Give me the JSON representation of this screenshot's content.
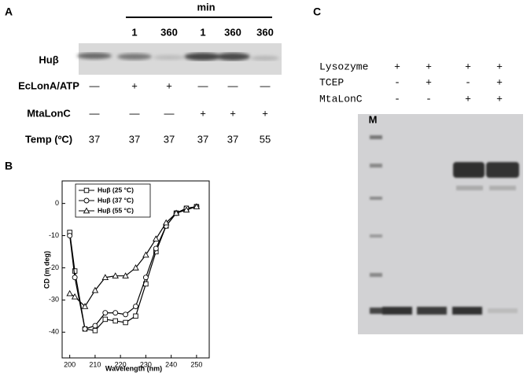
{
  "panel_a": {
    "label": "A",
    "time_unit": "min",
    "time_points": [
      1,
      360,
      1,
      360,
      360
    ],
    "blot_label": "Huβ",
    "rows": [
      {
        "label": "EcLonA/ATP",
        "cells": [
          "—",
          "+",
          "+",
          "—",
          "—",
          "—"
        ]
      },
      {
        "label": "MtaLonC",
        "cells": [
          "—",
          "—",
          "—",
          "+",
          "+",
          "+"
        ]
      },
      {
        "label": "Temp (ºC)",
        "cells": [
          37,
          37,
          37,
          37,
          37,
          55
        ]
      }
    ]
  },
  "chart_data": {
    "type": "line",
    "label": "B",
    "x_label": "Wavelength (nm)",
    "y_label": "CD (m deg)",
    "x": [
      200,
      202,
      206,
      210,
      214,
      218,
      222,
      226,
      230,
      234,
      238,
      242,
      246,
      250
    ],
    "series": [
      {
        "name": "Huβ (25 °C)",
        "marker": "square",
        "color": "#000000",
        "values": [
          -9,
          -21,
          -39,
          -39.5,
          -36,
          -36.5,
          -37,
          -35,
          -25,
          -15,
          -7,
          -3,
          -1.5,
          -1
        ]
      },
      {
        "name": "Huβ (37 °C)",
        "marker": "circle",
        "color": "#000000",
        "values": [
          -10,
          -23,
          -39,
          -38,
          -34,
          -34,
          -34.5,
          -32,
          -23,
          -14,
          -7,
          -3,
          -1.5,
          -1
        ]
      },
      {
        "name": "Huβ (55 °C)",
        "marker": "triangle",
        "color": "#000000",
        "values": [
          -28,
          -29,
          -32,
          -27,
          -23,
          -22.5,
          -22.5,
          -20,
          -16,
          -11,
          -6,
          -3,
          -2,
          -1
        ]
      }
    ],
    "xlim": [
      197,
      255
    ],
    "ylim": [
      -48,
      7
    ],
    "xticks": [
      200,
      210,
      220,
      230,
      240,
      250
    ],
    "yticks": [
      -40,
      -30,
      -20,
      -10,
      0
    ],
    "legend": "upper left"
  },
  "panel_c": {
    "label": "C",
    "marker_label": "M",
    "rows": [
      {
        "label": "Lysozyme",
        "cells": [
          "+",
          "+",
          "+",
          "+"
        ]
      },
      {
        "label": "TCEP",
        "cells": [
          "-",
          "+",
          "-",
          "+"
        ]
      },
      {
        "label": "MtaLonC",
        "cells": [
          "-",
          "-",
          "+",
          "+"
        ]
      }
    ]
  }
}
